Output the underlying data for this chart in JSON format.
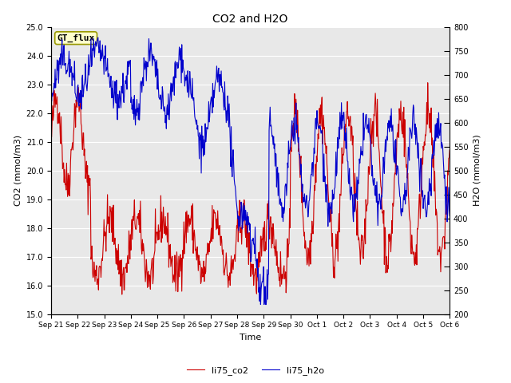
{
  "title": "CO2 and H2O",
  "xlabel": "Time",
  "ylabel_left": "CO2 (mmol/m3)",
  "ylabel_right": "H2O (mmol/m3)",
  "ylim_left": [
    15.0,
    25.0
  ],
  "ylim_right": [
    200,
    800
  ],
  "yticks_left": [
    15.0,
    16.0,
    17.0,
    18.0,
    19.0,
    20.0,
    21.0,
    22.0,
    23.0,
    24.0,
    25.0
  ],
  "yticks_right": [
    200,
    250,
    300,
    350,
    400,
    450,
    500,
    550,
    600,
    650,
    700,
    750,
    800
  ],
  "co2_color": "#cc0000",
  "h2o_color": "#0000cc",
  "background_color": "#e8e8e8",
  "legend_label_co2": "li75_co2",
  "legend_label_h2o": "li75_h2o",
  "annotation_text": "GT_flux",
  "tick_labels": [
    "Sep 21",
    "Sep 22",
    "Sep 23",
    "Sep 24",
    "Sep 25",
    "Sep 26",
    "Sep 27",
    "Sep 28",
    "Sep 29",
    "Sep 30",
    "Oct 1",
    "Oct 2",
    "Oct 3",
    "Oct 4",
    "Oct 5",
    "Oct 6"
  ],
  "n_points": 800,
  "seed": 42
}
